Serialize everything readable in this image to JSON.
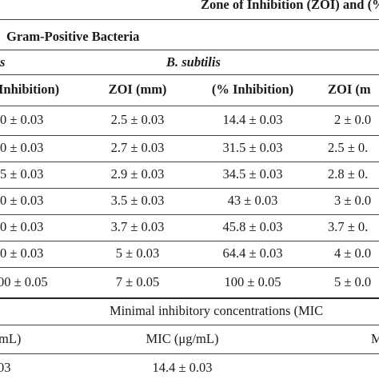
{
  "header": {
    "title_partial": "Zone of Inhibition (ZOI) and (%",
    "group": "Gram-Positive Bacteria",
    "species_left_fragment": "s",
    "species_right": "B. subtilis"
  },
  "columns": [
    "Inhibition)",
    "ZOI (mm)",
    "(% Inhibition)",
    "ZOI (m"
  ],
  "rows": [
    [
      "0 ± 0.03",
      "2.5 ± 0.03",
      "14.4 ± 0.03",
      "2 ± 0.0"
    ],
    [
      "0 ± 0.03",
      "2.7 ± 0.03",
      "31.5 ± 0.03",
      "2.5 ± 0."
    ],
    [
      "5 ± 0.03",
      "2.9 ± 0.03",
      "34.5 ± 0.03",
      "2.8 ± 0."
    ],
    [
      "0 ± 0.03",
      "3.5 ± 0.03",
      "43 ± 0.03",
      "3 ± 0.0"
    ],
    [
      "0 ± 0.03",
      "3.7 ± 0.03",
      "45.8 ± 0.03",
      "3.7 ± 0."
    ],
    [
      "0 ± 0.03",
      "5 ± 0.03",
      "64.4 ± 0.03",
      "4 ± 0.0"
    ],
    [
      "00 ± 0.05",
      "7 ± 0.05",
      "100 ± 0.05",
      "5 ± 0.0"
    ]
  ],
  "mic": {
    "title_partial": "Minimal inhibitory concentrations (MIC",
    "header_left": "mL)",
    "header_mid": "MIC (μg/mL)",
    "header_right": "M",
    "row_left": "03",
    "row_mid": "14.4 ± 0.03"
  }
}
